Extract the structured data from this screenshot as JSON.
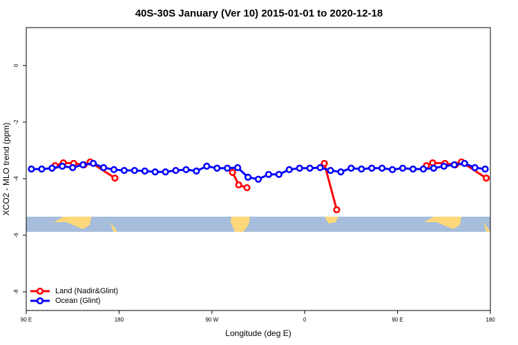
{
  "chart_data": {
    "type": "line",
    "title": "40S-30S January (Ver 10)   2015-01-01 to 2020-12-18",
    "x_label": "Longitude (deg E)",
    "y_label": "XCO2 - MLO trend (ppm)",
    "xlim": [
      90,
      540
    ],
    "ylim": [
      -8.66,
      1.34
    ],
    "xticks": [
      {
        "value": 90,
        "label": "90 E"
      },
      {
        "value": 180,
        "label": "180"
      },
      {
        "value": 270,
        "label": "90 W"
      },
      {
        "value": 360,
        "label": "0"
      },
      {
        "value": 450,
        "label": "90 E"
      },
      {
        "value": 540,
        "label": "180"
      }
    ],
    "yticks": [
      0,
      -2,
      -4,
      -6,
      -8
    ],
    "legend": "bottom-left",
    "series": [
      {
        "name": "Land (Nadir&Glint)",
        "color": "#ff0000",
        "x": [
          118,
          126,
          136,
          146,
          152,
          176,
          null,
          290,
          296,
          304,
          null,
          379,
          391,
          null,
          478,
          484,
          496,
          506,
          512,
          536
        ],
        "values": [
          -3.54,
          -3.44,
          -3.46,
          -3.51,
          -3.41,
          -3.98,
          null,
          -3.78,
          -4.22,
          -4.32,
          null,
          -3.46,
          -5.1,
          null,
          -3.54,
          -3.44,
          -3.46,
          -3.51,
          -3.41,
          -3.98
        ]
      },
      {
        "name": "Ocean (Glint)",
        "color": "#0000ff",
        "x": [
          95,
          105,
          115,
          125,
          135,
          145,
          155,
          165,
          175,
          185,
          195,
          205,
          215,
          225,
          235,
          245,
          255,
          265,
          275,
          285,
          295,
          305,
          315,
          325,
          335,
          345,
          355,
          365,
          375,
          385,
          395,
          405,
          415,
          425,
          435,
          445,
          455,
          465,
          475,
          485,
          495,
          505,
          515,
          525,
          535
        ],
        "values": [
          -3.66,
          -3.66,
          -3.63,
          -3.56,
          -3.61,
          -3.51,
          -3.46,
          -3.61,
          -3.68,
          -3.71,
          -3.71,
          -3.73,
          -3.76,
          -3.76,
          -3.71,
          -3.68,
          -3.73,
          -3.56,
          -3.63,
          -3.63,
          -3.61,
          -3.95,
          -4.02,
          -3.85,
          -3.85,
          -3.68,
          -3.63,
          -3.63,
          -3.61,
          -3.71,
          -3.76,
          -3.63,
          -3.66,
          -3.63,
          -3.63,
          -3.68,
          -3.63,
          -3.66,
          -3.66,
          -3.63,
          -3.56,
          -3.51,
          -3.46,
          -3.61,
          -3.66
        ]
      }
    ]
  }
}
